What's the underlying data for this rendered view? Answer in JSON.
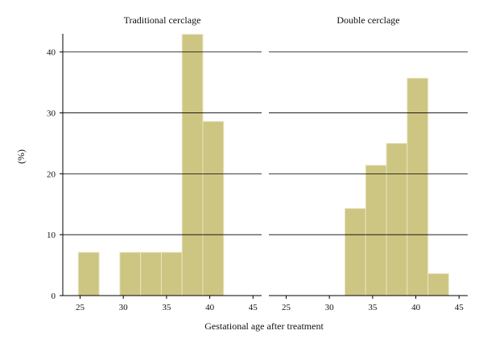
{
  "chart_data": {
    "type": "bar",
    "ylabel": "(%)",
    "xlabel": "Gestational age after treatment",
    "bar_color": "#cdc582",
    "bar_edge_color": "#e9e4be",
    "grid_color": "#000000",
    "grid": true,
    "xlim": [
      23,
      46
    ],
    "ylim": [
      0,
      43
    ],
    "x_ticks": [
      25,
      30,
      35,
      40,
      45
    ],
    "y_ticks": [
      0,
      10,
      20,
      30,
      40
    ],
    "bin_width": 2.4,
    "panels": [
      {
        "title": "Traditional cerclage",
        "bins": [
          {
            "x0": 24.8,
            "value": 7.1
          },
          {
            "x0": 29.6,
            "value": 7.1
          },
          {
            "x0": 32.0,
            "value": 7.1
          },
          {
            "x0": 34.4,
            "value": 7.1
          },
          {
            "x0": 36.8,
            "value": 42.9
          },
          {
            "x0": 39.2,
            "value": 28.6
          }
        ]
      },
      {
        "title": "Double cerclage",
        "bins": [
          {
            "x0": 31.8,
            "value": 14.3
          },
          {
            "x0": 34.2,
            "value": 21.4
          },
          {
            "x0": 36.6,
            "value": 25.0
          },
          {
            "x0": 39.0,
            "value": 35.7
          },
          {
            "x0": 41.4,
            "value": 3.6
          }
        ]
      }
    ]
  }
}
